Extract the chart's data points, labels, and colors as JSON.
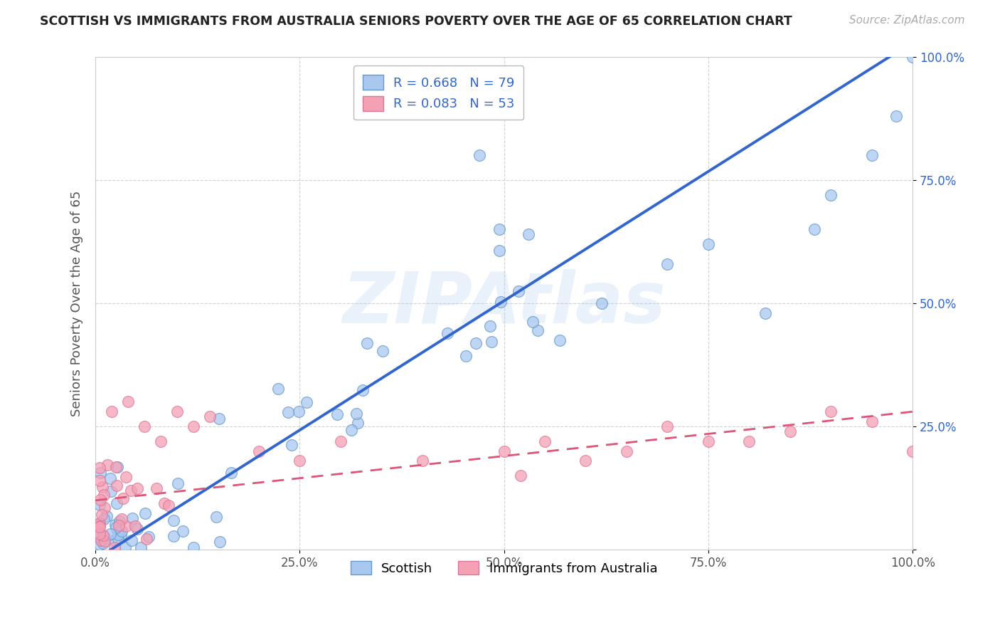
{
  "title": "SCOTTISH VS IMMIGRANTS FROM AUSTRALIA SENIORS POVERTY OVER THE AGE OF 65 CORRELATION CHART",
  "source": "Source: ZipAtlas.com",
  "ylabel": "Seniors Poverty Over the Age of 65",
  "xlim": [
    0,
    1
  ],
  "ylim": [
    0,
    1
  ],
  "xticks": [
    0.0,
    0.25,
    0.5,
    0.75,
    1.0
  ],
  "yticks": [
    0.0,
    0.25,
    0.5,
    0.75,
    1.0
  ],
  "xticklabels": [
    "0.0%",
    "25.0%",
    "50.0%",
    "75.0%",
    "100.0%"
  ],
  "yticklabels": [
    "",
    "25.0%",
    "50.0%",
    "75.0%",
    "100.0%"
  ],
  "scottish_color": "#a8c8f0",
  "australia_color": "#f4a0b5",
  "scottish_edge": "#6699cc",
  "australia_edge": "#dd7799",
  "trend_blue": "#3366cc",
  "trend_pink": "#dd5577",
  "legend_r1": "R = 0.668",
  "legend_n1": "N = 79",
  "legend_r2": "R = 0.083",
  "legend_n2": "N = 53",
  "label1": "Scottish",
  "label2": "Immigrants from Australia",
  "watermark": "ZIPAtlas",
  "r_n_color": "#3366cc",
  "grid_color": "#cccccc",
  "ytick_color": "#3366cc",
  "xtick_color": "#555555"
}
